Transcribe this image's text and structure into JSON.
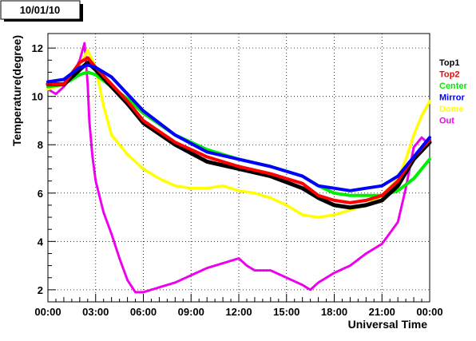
{
  "chart_data": {
    "type": "line",
    "title": "10/01/10",
    "xlabel": "Universal Time",
    "ylabel": "Temperature(degree)",
    "xlim": [
      0,
      24
    ],
    "ylim": [
      1.5,
      12.6
    ],
    "grid": true,
    "legend_position": "right",
    "x_ticks": [
      {
        "value": 0,
        "label": "00:00"
      },
      {
        "value": 3,
        "label": "03:00"
      },
      {
        "value": 6,
        "label": "06:00"
      },
      {
        "value": 9,
        "label": "09:00"
      },
      {
        "value": 12,
        "label": "12:00"
      },
      {
        "value": 15,
        "label": "15:00"
      },
      {
        "value": 18,
        "label": "18:00"
      },
      {
        "value": 21,
        "label": "21:00"
      },
      {
        "value": 24,
        "label": "00:00"
      }
    ],
    "y_ticks": [
      {
        "value": 2,
        "label": "2"
      },
      {
        "value": 4,
        "label": "4"
      },
      {
        "value": 6,
        "label": "6"
      },
      {
        "value": 8,
        "label": "8"
      },
      {
        "value": 10,
        "label": "10"
      },
      {
        "value": 12,
        "label": "12"
      }
    ],
    "series": [
      {
        "name": "Top1",
        "color": "#000000",
        "x": [
          0,
          1,
          2,
          2.5,
          3,
          4,
          5,
          6,
          8,
          10,
          12,
          14,
          16,
          17,
          18,
          19,
          20,
          21,
          22,
          23,
          24
        ],
        "y": [
          10.5,
          10.5,
          11.1,
          11.4,
          11.1,
          10.4,
          9.7,
          8.9,
          8.0,
          7.3,
          7.0,
          6.7,
          6.2,
          5.8,
          5.5,
          5.4,
          5.5,
          5.7,
          6.3,
          7.4,
          8.1
        ]
      },
      {
        "name": "Top2",
        "color": "#ff0000",
        "x": [
          0,
          1,
          2,
          2.5,
          3,
          4,
          5,
          6,
          8,
          10,
          12,
          14,
          16,
          17,
          18,
          19,
          20,
          21,
          22,
          23,
          24
        ],
        "y": [
          10.5,
          10.5,
          11.4,
          11.6,
          11.2,
          10.5,
          9.8,
          9.0,
          8.1,
          7.5,
          7.1,
          6.8,
          6.4,
          5.9,
          5.7,
          5.6,
          5.7,
          5.9,
          6.5,
          7.5,
          8.2
        ]
      },
      {
        "name": "Center",
        "color": "#00ee00",
        "x": [
          0,
          1,
          2,
          2.5,
          3,
          4,
          5,
          6,
          8,
          10,
          12,
          14,
          16,
          17,
          18,
          19,
          20,
          21,
          22,
          23,
          24
        ],
        "y": [
          10.4,
          10.5,
          10.9,
          11.0,
          10.9,
          10.4,
          9.9,
          9.3,
          8.4,
          7.8,
          7.4,
          7.1,
          6.7,
          6.3,
          6.0,
          5.9,
          5.9,
          5.9,
          6.1,
          6.6,
          7.4
        ]
      },
      {
        "name": "Mirror",
        "color": "#0000ff",
        "x": [
          0,
          1,
          2,
          2.5,
          3,
          4,
          5,
          6,
          8,
          10,
          12,
          14,
          16,
          17,
          18,
          19,
          20,
          21,
          22,
          23,
          24
        ],
        "y": [
          10.6,
          10.7,
          11.2,
          11.3,
          11.2,
          10.8,
          10.1,
          9.4,
          8.4,
          7.7,
          7.4,
          7.1,
          6.7,
          6.3,
          6.2,
          6.1,
          6.2,
          6.3,
          6.7,
          7.5,
          8.3
        ]
      },
      {
        "name": "Dome",
        "color": "#ffff00",
        "x": [
          0,
          1,
          1.5,
          2,
          2.5,
          3,
          3.5,
          4,
          5,
          6,
          7,
          8,
          9,
          10,
          11,
          12,
          13,
          14,
          15,
          16,
          17,
          18,
          19,
          20,
          21,
          22,
          22.5,
          23,
          23.5,
          24
        ],
        "y": [
          10.3,
          10.5,
          10.9,
          11.3,
          11.9,
          11.2,
          9.6,
          8.4,
          7.6,
          7.0,
          6.6,
          6.3,
          6.2,
          6.2,
          6.3,
          6.1,
          6.0,
          5.8,
          5.5,
          5.1,
          5.0,
          5.1,
          5.3,
          5.5,
          5.9,
          6.6,
          7.4,
          8.4,
          9.2,
          9.8
        ]
      },
      {
        "name": "Out",
        "color": "#ee00ee",
        "x": [
          0,
          0.5,
          1,
          1.5,
          2,
          2.3,
          2.5,
          2.6,
          2.8,
          3,
          3.5,
          4,
          4.5,
          5,
          5.5,
          6,
          7,
          8,
          9,
          10,
          11,
          12,
          12.5,
          13,
          14,
          15,
          16,
          16.5,
          17,
          18,
          19,
          20,
          21,
          22,
          22.5,
          23,
          23.5,
          24
        ],
        "y": [
          10.3,
          10.1,
          10.4,
          10.8,
          11.5,
          12.2,
          10.5,
          9.0,
          7.5,
          6.5,
          5.2,
          4.3,
          3.3,
          2.4,
          1.9,
          1.9,
          2.1,
          2.3,
          2.6,
          2.9,
          3.1,
          3.3,
          3.0,
          2.8,
          2.8,
          2.5,
          2.2,
          2.0,
          2.3,
          2.7,
          3.0,
          3.5,
          3.9,
          4.8,
          6.2,
          7.9,
          8.3,
          8.0
        ]
      }
    ]
  }
}
